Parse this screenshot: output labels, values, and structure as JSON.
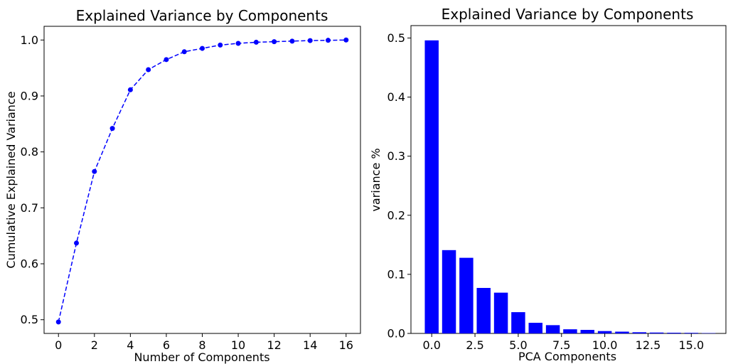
{
  "chart_data": [
    {
      "type": "line",
      "title": "Explained Variance by Components",
      "xlabel": "Number of Components",
      "ylabel": "Cumulative Explained Variance",
      "x": [
        0,
        1,
        2,
        3,
        4,
        5,
        6,
        7,
        8,
        9,
        10,
        11,
        12,
        13,
        14,
        15,
        16
      ],
      "series": [
        {
          "values": [
            0.496,
            0.637,
            0.765,
            0.842,
            0.911,
            0.947,
            0.965,
            0.979,
            0.985,
            0.991,
            0.994,
            0.996,
            0.997,
            0.998,
            0.999,
            0.9995,
            1.0
          ],
          "color": "#0000ff",
          "line_style": "dashed",
          "marker": "circle"
        }
      ],
      "xlim": [
        -0.8,
        16.8
      ],
      "ylim": [
        0.4755,
        1.0245
      ],
      "xticks": [
        0,
        2,
        4,
        6,
        8,
        10,
        12,
        14,
        16
      ],
      "xtick_labels": [
        "0",
        "2",
        "4",
        "6",
        "8",
        "10",
        "12",
        "14",
        "16"
      ],
      "yticks": [
        0.5,
        0.6,
        0.7,
        0.8,
        0.9,
        1.0
      ],
      "ytick_labels": [
        "0.5",
        "0.6",
        "0.7",
        "0.8",
        "0.9",
        "1.0"
      ],
      "grid": false
    },
    {
      "type": "bar",
      "title": "Explained Variance by Components",
      "xlabel": "PCA Components",
      "ylabel": "variance %",
      "x": [
        0,
        1,
        2,
        3,
        4,
        5,
        6,
        7,
        8,
        9,
        10,
        11,
        12,
        13,
        14,
        15,
        16
      ],
      "values": [
        0.496,
        0.141,
        0.128,
        0.077,
        0.069,
        0.036,
        0.018,
        0.014,
        0.007,
        0.006,
        0.004,
        0.003,
        0.002,
        0.0015,
        0.0012,
        0.001,
        0.0005
      ],
      "color": "#0000ff",
      "xlim": [
        -1.2,
        17.0
      ],
      "ylim": [
        0,
        0.521
      ],
      "xticks": [
        0,
        2.5,
        5,
        7.5,
        10,
        12.5,
        15
      ],
      "xtick_labels": [
        "0.0",
        "2.5",
        "5.0",
        "7.5",
        "10.0",
        "12.5",
        "15.0"
      ],
      "yticks": [
        0,
        0.1,
        0.2,
        0.3,
        0.4,
        0.5
      ],
      "ytick_labels": [
        "0.0",
        "0.1",
        "0.2",
        "0.3",
        "0.4",
        "0.5"
      ],
      "grid": false
    }
  ]
}
